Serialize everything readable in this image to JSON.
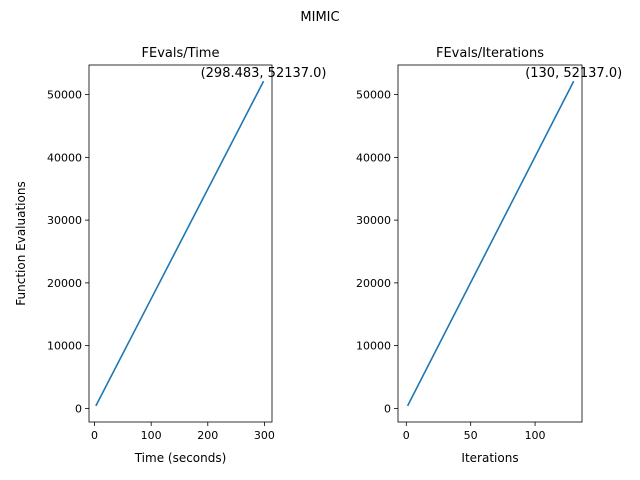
{
  "chart_data": [
    {
      "type": "line",
      "suptitle": "MIMIC",
      "title": "FEvals/Time",
      "xlabel": "Time (seconds)",
      "ylabel": "Function Evaluations",
      "xlim": [
        -9.8,
        313.4
      ],
      "ylim": [
        -2170,
        54720
      ],
      "xticks": [
        0,
        100,
        200,
        300
      ],
      "yticks": [
        0,
        10000,
        20000,
        30000,
        40000,
        50000
      ],
      "series": [
        {
          "x": [
            2.3,
            298.483
          ],
          "y": [
            400,
            52137.0
          ],
          "color": "#1f77b4"
        }
      ],
      "annotation": {
        "text": "(298.483, 52137.0)",
        "x": 298.483,
        "y": 52137.0
      },
      "grid": false
    },
    {
      "type": "line",
      "title": "FEvals/Iterations",
      "xlabel": "Iterations",
      "ylabel": "",
      "xlim": [
        -6.45,
        136.45
      ],
      "ylim": [
        -2170,
        54720
      ],
      "xticks": [
        0,
        50,
        100
      ],
      "yticks": [
        0,
        10000,
        20000,
        30000,
        40000,
        50000
      ],
      "series": [
        {
          "x": [
            1,
            130
          ],
          "y": [
            400,
            52137.0
          ],
          "color": "#1f77b4"
        }
      ],
      "annotation": {
        "text": "(130, 52137.0)",
        "x": 130,
        "y": 52137.0
      },
      "grid": false
    }
  ]
}
